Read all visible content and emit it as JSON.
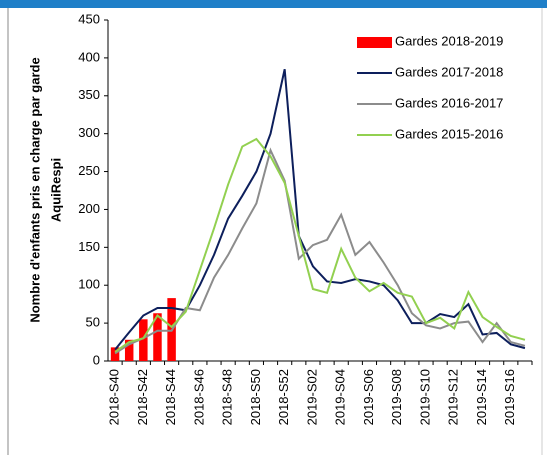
{
  "chart_data": {
    "type": "combo",
    "ylabel": [
      "Nombre d'enfants pris en charge par garde",
      "AquiRespi"
    ],
    "categories": [
      "2018-S40",
      null,
      "2018-S42",
      null,
      "2018-S44",
      null,
      "2018-S46",
      null,
      "2018-S48",
      null,
      "2018-S50",
      null,
      "2018-S52",
      null,
      "2019-S02",
      null,
      "2019-S04",
      null,
      "2019-S06",
      null,
      "2019-S08",
      null,
      "2019-S10",
      null,
      "2019-S12",
      null,
      "2019-S14",
      null,
      "2019-S16",
      null
    ],
    "ylim": [
      0,
      450
    ],
    "yticks": [
      0,
      50,
      100,
      150,
      200,
      250,
      300,
      350,
      400,
      450
    ],
    "legend": "top-right",
    "series": [
      {
        "name": "Gardes 2018-2019",
        "type": "bar",
        "color": "#ff0000",
        "values": [
          18,
          28,
          55,
          63,
          83,
          null,
          null,
          null,
          null,
          null,
          null,
          null,
          null,
          null,
          null,
          null,
          null,
          null,
          null,
          null,
          null,
          null,
          null,
          null,
          null,
          null,
          null,
          null,
          null,
          null
        ]
      },
      {
        "name": "Gardes 2017-2018",
        "type": "line",
        "color": "#0d1f5c",
        "values": [
          15,
          38,
          60,
          70,
          70,
          67,
          100,
          140,
          188,
          218,
          250,
          300,
          385,
          165,
          125,
          105,
          103,
          108,
          105,
          100,
          80,
          50,
          50,
          62,
          58,
          75,
          35,
          37,
          22,
          17
        ]
      },
      {
        "name": "Gardes 2016-2017",
        "type": "line",
        "color": "#8c8c8c",
        "values": [
          10,
          22,
          30,
          40,
          40,
          70,
          67,
          110,
          140,
          175,
          208,
          278,
          238,
          135,
          153,
          160,
          193,
          140,
          157,
          130,
          100,
          63,
          47,
          43,
          50,
          52,
          25,
          50,
          25,
          20
        ]
      },
      {
        "name": "Gardes 2015-2016",
        "type": "line",
        "color": "#92d050",
        "values": [
          12,
          25,
          30,
          60,
          45,
          65,
          120,
          175,
          233,
          283,
          293,
          270,
          235,
          165,
          95,
          90,
          148,
          110,
          92,
          103,
          90,
          85,
          50,
          57,
          43,
          91,
          58,
          45,
          33,
          28
        ]
      }
    ]
  }
}
